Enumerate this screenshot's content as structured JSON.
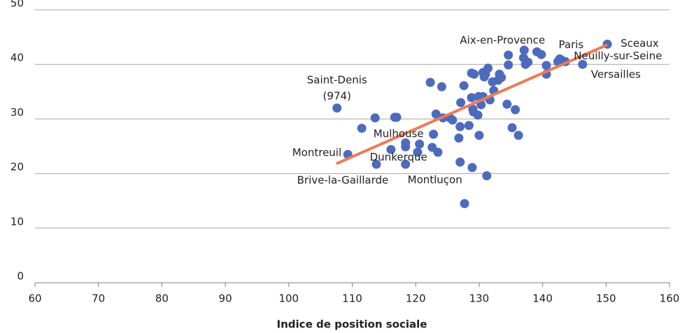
{
  "chart_data": {
    "type": "scatter",
    "x_label": "Indice de position sociale",
    "color": "#4d6bbd",
    "x": [
      107.6,
      109.3,
      111.5,
      113.6,
      113.8,
      116.7,
      117.0,
      116.1,
      118.4,
      118.4,
      118.4,
      120.3,
      120.6,
      122.3,
      122.6,
      122.8,
      123.2,
      123.5,
      124.1,
      124.3,
      125.4,
      125.8,
      126.8,
      127.0,
      127.1,
      127.0,
      127.6,
      127.7,
      128.4,
      128.8,
      129.2,
      129.0,
      128.8,
      128.9,
      129.1,
      129.8,
      129.9,
      130.0,
      130.3,
      130.6,
      130.6,
      130.8,
      131.0,
      131.2,
      131.4,
      131.7,
      132.1,
      132.3,
      133.0,
      133.2,
      133.5,
      134.4,
      134.6,
      134.6,
      135.2,
      135.7,
      136.2,
      137.1,
      137.0,
      137.3,
      137.7,
      139.1,
      139.8,
      140.6,
      140.6,
      142.4,
      142.7,
      143.1,
      143.6,
      146.3,
      150.2
    ],
    "values": [
      32.0,
      23.5,
      28.3,
      30.2,
      21.7,
      30.3,
      30.3,
      24.4,
      25.6,
      24.9,
      21.7,
      23.9,
      25.4,
      36.7,
      24.8,
      27.2,
      30.9,
      23.9,
      35.9,
      30.2,
      30.2,
      29.8,
      26.5,
      22.1,
      33.0,
      28.6,
      36.1,
      14.5,
      28.8,
      38.4,
      38.2,
      31.8,
      33.9,
      21.1,
      31.3,
      30.7,
      34.1,
      27.0,
      32.6,
      34.1,
      38.5,
      37.7,
      38.2,
      19.6,
      39.3,
      33.5,
      36.8,
      35.2,
      37.1,
      38.2,
      37.6,
      32.7,
      41.7,
      39.9,
      28.4,
      31.7,
      27.0,
      42.6,
      41.2,
      40.0,
      40.4,
      42.3,
      41.8,
      39.8,
      38.2,
      40.5,
      41.0,
      40.7,
      40.5,
      40.0,
      43.7
    ],
    "trendline": {
      "color": "#f07a55",
      "x": [
        107.5,
        150.2
      ],
      "y": [
        21.8,
        43.6
      ]
    },
    "annotations": [
      {
        "lines": [
          "Saint-Denis",
          "(974)"
        ],
        "x": 107.6,
        "y": 32.0
      },
      {
        "lines": [
          "Montreuil"
        ],
        "x": 109.3,
        "y": 23.5
      },
      {
        "lines": [
          "Mulhouse"
        ],
        "x": 118.4,
        "y": 25.6
      },
      {
        "lines": [
          "Dunkerque"
        ],
        "x": 118.4,
        "y": 24.9
      },
      {
        "lines": [
          "Brive-la-Gaillarde"
        ],
        "x": 113.8,
        "y": 21.7
      },
      {
        "lines": [
          "Montluçon"
        ],
        "x": 127.0,
        "y": 22.1
      },
      {
        "lines": [
          "Aix-en-Provence"
        ],
        "x": 137.1,
        "y": 42.6
      },
      {
        "lines": [
          "Paris"
        ],
        "x": 142.4,
        "y": 40.5
      },
      {
        "lines": [
          "Sceaux"
        ],
        "x": 150.2,
        "y": 43.7
      },
      {
        "lines": [
          "Neuilly-sur-Seine"
        ],
        "x": 143.6,
        "y": 40.5
      },
      {
        "lines": [
          "Versailles"
        ],
        "x": 146.3,
        "y": 40.0
      }
    ],
    "xlim": [
      60,
      160
    ],
    "xticks": [
      60,
      70,
      80,
      90,
      100,
      110,
      120,
      130,
      140,
      150,
      160
    ],
    "ylim": [
      0,
      50
    ],
    "yticks": [
      0,
      10,
      20,
      30,
      40,
      50
    ],
    "grid": true
  }
}
